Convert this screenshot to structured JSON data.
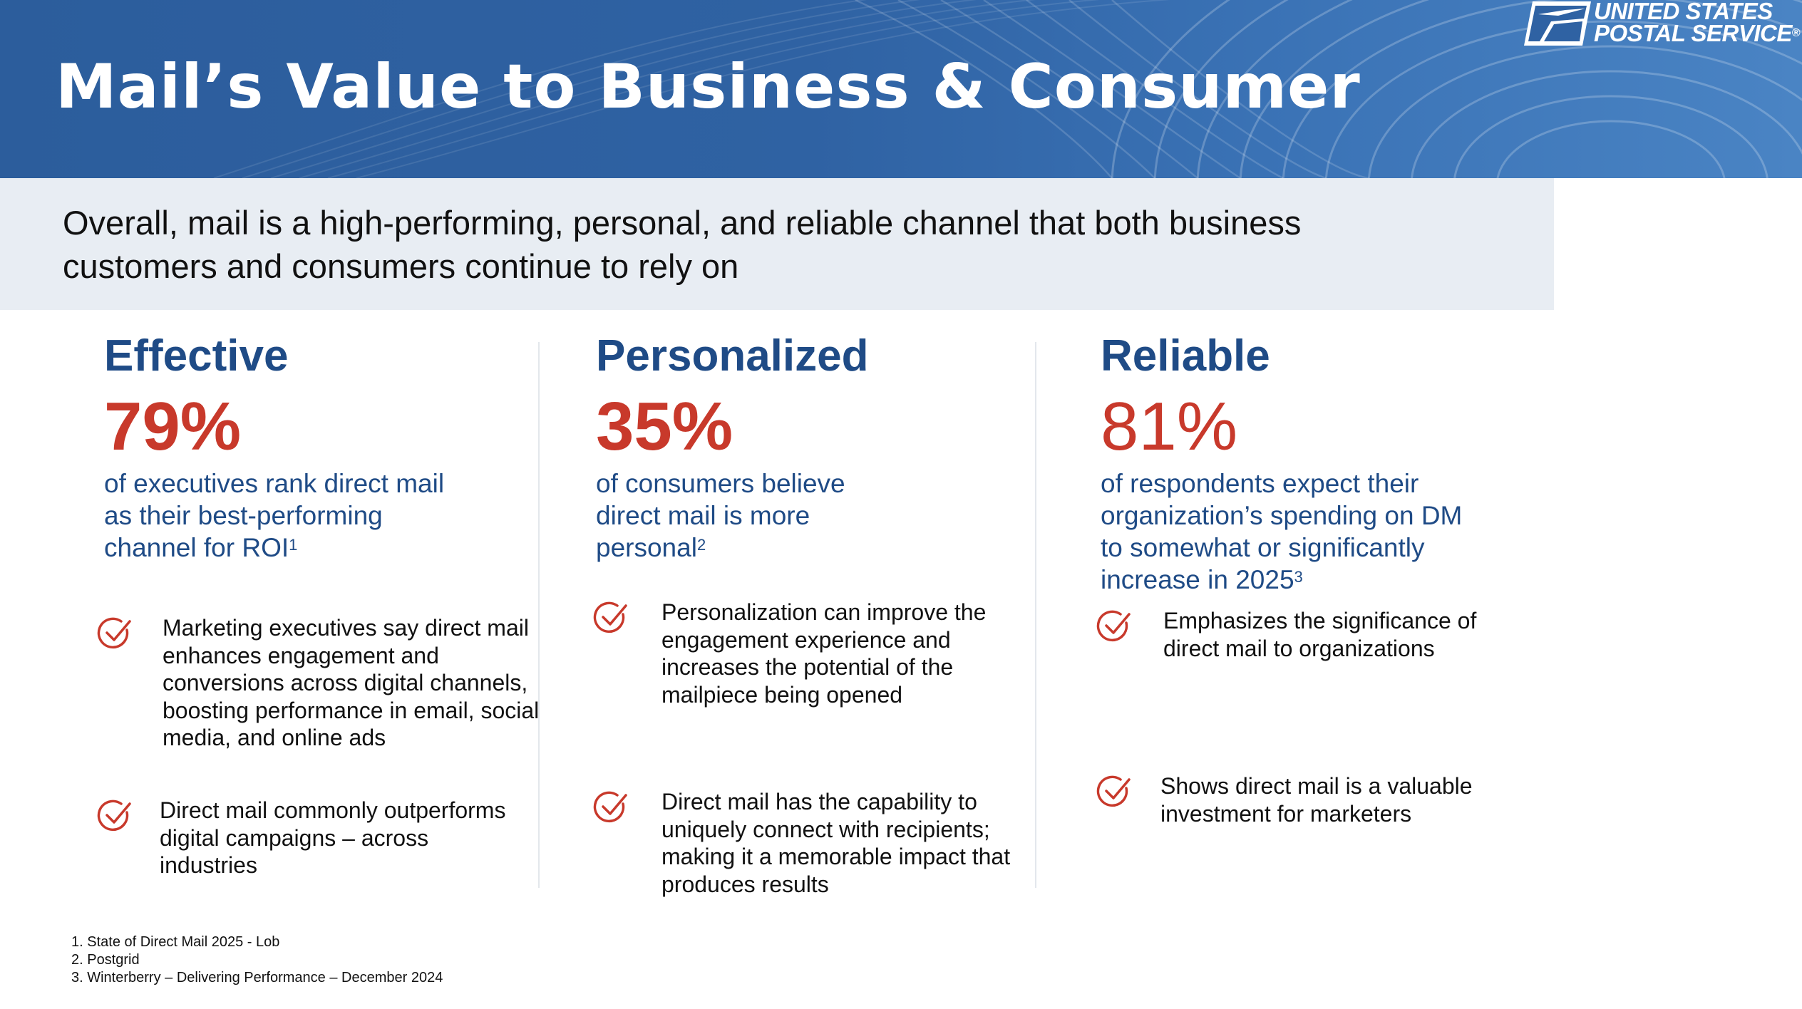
{
  "header": {
    "title": "Mail’s Value to Business & Consumer",
    "brand_line1": "UNITED STATES",
    "brand_line2": "POSTAL SERVICE",
    "brand_registered": "®",
    "colors": {
      "banner": "#2f62a3",
      "heading_blue": "#1f4b86",
      "stat_red": "#c8392b",
      "summary_bg": "#e8edf3"
    }
  },
  "summary": {
    "text": "Overall, mail is a high-performing, personal, and reliable channel that both business customers and consumers continue to rely on"
  },
  "columns": [
    {
      "heading": "Effective",
      "stat": "79%",
      "description": "of executives rank direct mail as their best-performing channel for ROI",
      "footnote_ref": "1",
      "bullets": [
        "Marketing executives say direct mail enhances engagement and conversions across digital channels, boosting performance in email, social media, and online ads",
        "Direct mail commonly outperforms digital campaigns – across industries"
      ]
    },
    {
      "heading": "Personalized",
      "stat": "35%",
      "description": "of consumers believe direct mail is more personal",
      "footnote_ref": "2",
      "bullets": [
        "Personalization can improve the engagement experience and increases the potential of the mailpiece being opened",
        "Direct mail has the capability to uniquely connect with recipients; making it a memorable impact that produces results"
      ]
    },
    {
      "heading": "Reliable",
      "stat": "81%",
      "description": "of respondents expect their organization’s spending on DM to somewhat or significantly increase in 2025",
      "footnote_ref": "3",
      "bullets": [
        "Emphasizes the significance of direct mail to organizations",
        "Shows direct mail is a valuable investment for marketers"
      ]
    }
  ],
  "footnotes": [
    "1. State of Direct Mail 2025 - Lob",
    "2. Postgrid",
    "3. Winterberry – Delivering Performance – December 2024"
  ],
  "icons": {
    "bullet": "checkmark-circle-icon",
    "logo": "usps-eagle-icon"
  }
}
